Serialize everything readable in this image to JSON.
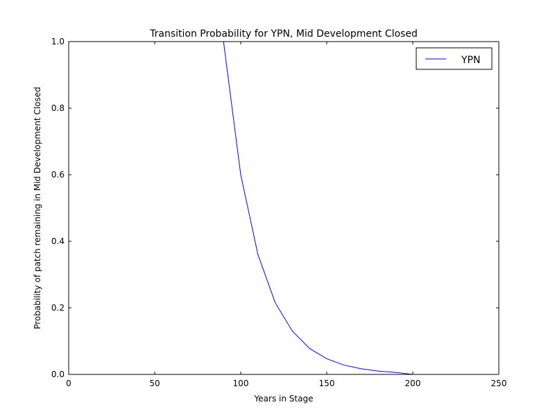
{
  "chart_data": {
    "type": "line",
    "title": "Transition Probability for YPN, Mid Development Closed",
    "xlabel": "Years in Stage",
    "ylabel": "Probability of patch remaining in Mid Development Closed",
    "xlim": [
      0,
      250
    ],
    "ylim": [
      0,
      1.0
    ],
    "xticks": [
      0,
      50,
      100,
      150,
      200,
      250
    ],
    "xtick_labels": [
      "0",
      "50",
      "100",
      "150",
      "200",
      "250"
    ],
    "yticks": [
      0.0,
      0.2,
      0.4,
      0.6,
      0.8,
      1.0
    ],
    "ytick_labels": [
      "0.0",
      "0.2",
      "0.4",
      "0.6",
      "0.8",
      "1.0"
    ],
    "grid": false,
    "legend_position": "top-right",
    "series": [
      {
        "name": "YPN",
        "color": "#0000ff",
        "x": [
          0,
          10,
          20,
          30,
          40,
          50,
          60,
          70,
          80,
          90,
          100,
          110,
          120,
          130,
          140,
          150,
          160,
          170,
          180,
          190,
          200
        ],
        "y": [
          1.0,
          1.0,
          1.0,
          1.0,
          1.0,
          1.0,
          1.0,
          1.0,
          1.0,
          1.0,
          0.6,
          0.36,
          0.216,
          0.13,
          0.078,
          0.047,
          0.028,
          0.017,
          0.01,
          0.006,
          0.0
        ]
      }
    ]
  }
}
